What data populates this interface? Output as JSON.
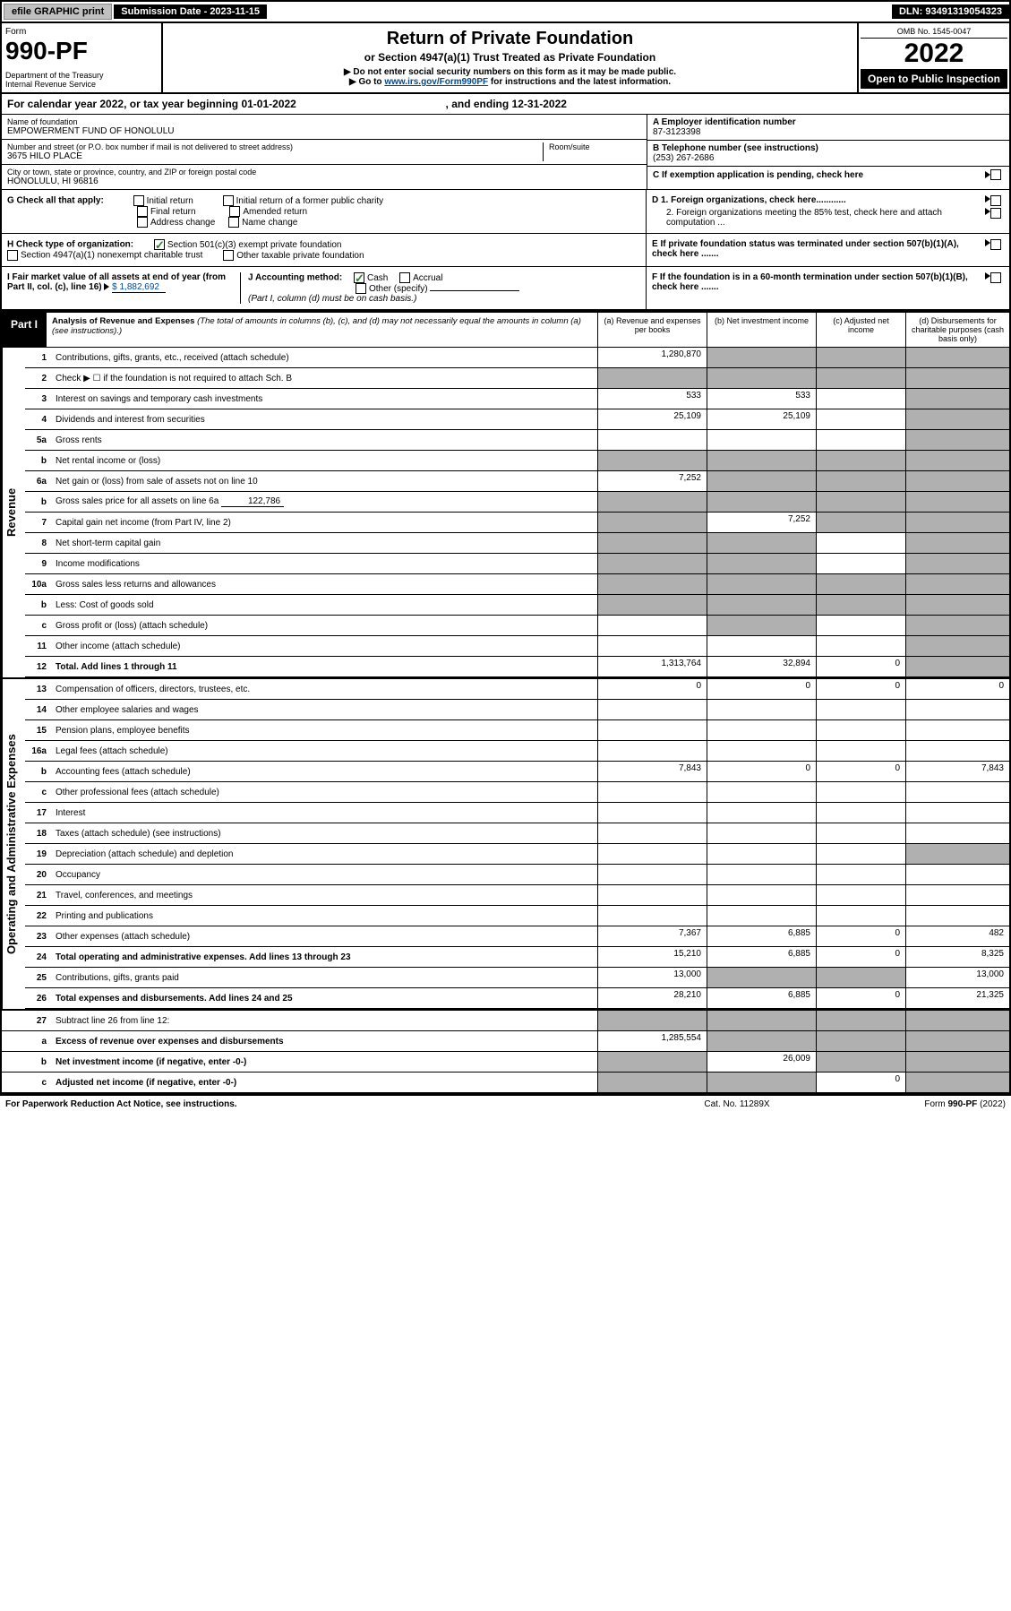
{
  "topbar": {
    "efile": "efile GRAPHIC print",
    "subdate": "Submission Date - 2023-11-15",
    "dln": "DLN: 93491319054323"
  },
  "header": {
    "form_label": "Form",
    "form_num": "990-PF",
    "dept": "Department of the Treasury\nInternal Revenue Service",
    "title": "Return of Private Foundation",
    "subtitle": "or Section 4947(a)(1) Trust Treated as Private Foundation",
    "line1": "▶ Do not enter social security numbers on this form as it may be made public.",
    "line2_pre": "▶ Go to ",
    "line2_link": "www.irs.gov/Form990PF",
    "line2_post": " for instructions and the latest information.",
    "omb": "OMB No. 1545-0047",
    "year": "2022",
    "open": "Open to Public Inspection"
  },
  "cal": {
    "text_pre": "For calendar year 2022, or tax year beginning ",
    "begin": "01-01-2022",
    "text_mid": " , and ending ",
    "end": "12-31-2022"
  },
  "info": {
    "name_label": "Name of foundation",
    "name": "EMPOWERMENT FUND OF HONOLULU",
    "addr_label": "Number and street (or P.O. box number if mail is not delivered to street address)",
    "addr": "3675 HILO PLACE",
    "room_label": "Room/suite",
    "city_label": "City or town, state or province, country, and ZIP or foreign postal code",
    "city": "HONOLULU, HI  96816",
    "A_label": "A Employer identification number",
    "A_val": "87-3123398",
    "B_label": "B Telephone number (see instructions)",
    "B_val": "(253) 267-2686",
    "C_label": "C If exemption application is pending, check here",
    "D1": "D 1. Foreign organizations, check here............",
    "D2": "2. Foreign organizations meeting the 85% test, check here and attach computation ...",
    "E": "E  If private foundation status was terminated under section 507(b)(1)(A), check here .......",
    "F": "F  If the foundation is in a 60-month termination under section 507(b)(1)(B), check here .......",
    "G_label": "G Check all that apply:",
    "G_opts": [
      "Initial return",
      "Initial return of a former public charity",
      "Final return",
      "Amended return",
      "Address change",
      "Name change"
    ],
    "H_label": "H Check type of organization:",
    "H_opt1": "Section 501(c)(3) exempt private foundation",
    "H_opt2": "Section 4947(a)(1) nonexempt charitable trust",
    "H_opt3": "Other taxable private foundation",
    "I_label": "I Fair market value of all assets at end of year (from Part II, col. (c), line 16)",
    "I_val": "$  1,882,692",
    "J_label": "J Accounting method:",
    "J_opts": [
      "Cash",
      "Accrual",
      "Other (specify)"
    ],
    "J_note": "(Part I, column (d) must be on cash basis.)"
  },
  "part1": {
    "label": "Part I",
    "title": "Analysis of Revenue and Expenses",
    "note": " (The total of amounts in columns (b), (c), and (d) may not necessarily equal the amounts in column (a) (see instructions).)",
    "col_a": "(a)   Revenue and expenses per books",
    "col_b": "(b)   Net investment income",
    "col_c": "(c)   Adjusted net income",
    "col_d": "(d)   Disbursements for charitable purposes (cash basis only)"
  },
  "sides": {
    "rev": "Revenue",
    "exp": "Operating and Administrative Expenses"
  },
  "rows": {
    "r1": {
      "n": "1",
      "d": "Contributions, gifts, grants, etc., received (attach schedule)",
      "a": "1,280,870",
      "b": "",
      "c": "",
      "dd": "",
      "bs": true,
      "cs": true,
      "ds": true
    },
    "r2": {
      "n": "2",
      "d": "Check ▶ ☐ if the foundation is not required to attach Sch. B",
      "a": "",
      "b": "",
      "c": "",
      "dd": "",
      "as": true,
      "bs": true,
      "cs": true,
      "ds": true
    },
    "r3": {
      "n": "3",
      "d": "Interest on savings and temporary cash investments",
      "a": "533",
      "b": "533",
      "c": "",
      "dd": "",
      "ds": true
    },
    "r4": {
      "n": "4",
      "d": "Dividends and interest from securities",
      "a": "25,109",
      "b": "25,109",
      "c": "",
      "dd": "",
      "ds": true
    },
    "r5a": {
      "n": "5a",
      "d": "Gross rents",
      "a": "",
      "b": "",
      "c": "",
      "dd": "",
      "ds": true
    },
    "r5b": {
      "n": "b",
      "d": "Net rental income or (loss)",
      "a": "",
      "b": "",
      "c": "",
      "dd": "",
      "as": true,
      "bs": true,
      "cs": true,
      "ds": true
    },
    "r6a": {
      "n": "6a",
      "d": "Net gain or (loss) from sale of assets not on line 10",
      "a": "7,252",
      "b": "",
      "c": "",
      "dd": "",
      "bs": true,
      "cs": true,
      "ds": true
    },
    "r6b": {
      "n": "b",
      "d": "Gross sales price for all assets on line 6a",
      "sub": "122,786",
      "a": "",
      "b": "",
      "c": "",
      "dd": "",
      "as": true,
      "bs": true,
      "cs": true,
      "ds": true
    },
    "r7": {
      "n": "7",
      "d": "Capital gain net income (from Part IV, line 2)",
      "a": "",
      "b": "7,252",
      "c": "",
      "dd": "",
      "as": true,
      "cs": true,
      "ds": true
    },
    "r8": {
      "n": "8",
      "d": "Net short-term capital gain",
      "a": "",
      "b": "",
      "c": "",
      "dd": "",
      "as": true,
      "bs": true,
      "ds": true
    },
    "r9": {
      "n": "9",
      "d": "Income modifications",
      "a": "",
      "b": "",
      "c": "",
      "dd": "",
      "as": true,
      "bs": true,
      "ds": true
    },
    "r10a": {
      "n": "10a",
      "d": "Gross sales less returns and allowances",
      "a": "",
      "b": "",
      "c": "",
      "dd": "",
      "as": true,
      "bs": true,
      "cs": true,
      "ds": true
    },
    "r10b": {
      "n": "b",
      "d": "Less: Cost of goods sold",
      "a": "",
      "b": "",
      "c": "",
      "dd": "",
      "as": true,
      "bs": true,
      "cs": true,
      "ds": true
    },
    "r10c": {
      "n": "c",
      "d": "Gross profit or (loss) (attach schedule)",
      "a": "",
      "b": "",
      "c": "",
      "dd": "",
      "bs": true,
      "ds": true
    },
    "r11": {
      "n": "11",
      "d": "Other income (attach schedule)",
      "a": "",
      "b": "",
      "c": "",
      "dd": "",
      "ds": true
    },
    "r12": {
      "n": "12",
      "d": "Total. Add lines 1 through 11",
      "a": "1,313,764",
      "b": "32,894",
      "c": "0",
      "dd": "",
      "ds": true,
      "bold": true
    },
    "r13": {
      "n": "13",
      "d": "Compensation of officers, directors, trustees, etc.",
      "a": "0",
      "b": "0",
      "c": "0",
      "dd": "0"
    },
    "r14": {
      "n": "14",
      "d": "Other employee salaries and wages",
      "a": "",
      "b": "",
      "c": "",
      "dd": ""
    },
    "r15": {
      "n": "15",
      "d": "Pension plans, employee benefits",
      "a": "",
      "b": "",
      "c": "",
      "dd": ""
    },
    "r16a": {
      "n": "16a",
      "d": "Legal fees (attach schedule)",
      "a": "",
      "b": "",
      "c": "",
      "dd": ""
    },
    "r16b": {
      "n": "b",
      "d": "Accounting fees (attach schedule)",
      "a": "7,843",
      "b": "0",
      "c": "0",
      "dd": "7,843"
    },
    "r16c": {
      "n": "c",
      "d": "Other professional fees (attach schedule)",
      "a": "",
      "b": "",
      "c": "",
      "dd": ""
    },
    "r17": {
      "n": "17",
      "d": "Interest",
      "a": "",
      "b": "",
      "c": "",
      "dd": ""
    },
    "r18": {
      "n": "18",
      "d": "Taxes (attach schedule) (see instructions)",
      "a": "",
      "b": "",
      "c": "",
      "dd": ""
    },
    "r19": {
      "n": "19",
      "d": "Depreciation (attach schedule) and depletion",
      "a": "",
      "b": "",
      "c": "",
      "dd": "",
      "ds": true
    },
    "r20": {
      "n": "20",
      "d": "Occupancy",
      "a": "",
      "b": "",
      "c": "",
      "dd": ""
    },
    "r21": {
      "n": "21",
      "d": "Travel, conferences, and meetings",
      "a": "",
      "b": "",
      "c": "",
      "dd": ""
    },
    "r22": {
      "n": "22",
      "d": "Printing and publications",
      "a": "",
      "b": "",
      "c": "",
      "dd": ""
    },
    "r23": {
      "n": "23",
      "d": "Other expenses (attach schedule)",
      "a": "7,367",
      "b": "6,885",
      "c": "0",
      "dd": "482"
    },
    "r24": {
      "n": "24",
      "d": "Total operating and administrative expenses. Add lines 13 through 23",
      "a": "15,210",
      "b": "6,885",
      "c": "0",
      "dd": "8,325",
      "bold": true
    },
    "r25": {
      "n": "25",
      "d": "Contributions, gifts, grants paid",
      "a": "13,000",
      "b": "",
      "c": "",
      "dd": "13,000",
      "bs": true,
      "cs": true
    },
    "r26": {
      "n": "26",
      "d": "Total expenses and disbursements. Add lines 24 and 25",
      "a": "28,210",
      "b": "6,885",
      "c": "0",
      "dd": "21,325",
      "bold": true
    },
    "r27": {
      "n": "27",
      "d": "Subtract line 26 from line 12:",
      "a": "",
      "b": "",
      "c": "",
      "dd": "",
      "as": true,
      "bs": true,
      "cs": true,
      "ds": true
    },
    "r27a": {
      "n": "a",
      "d": "Excess of revenue over expenses and disbursements",
      "a": "1,285,554",
      "b": "",
      "c": "",
      "dd": "",
      "bs": true,
      "cs": true,
      "ds": true,
      "bold": true
    },
    "r27b": {
      "n": "b",
      "d": "Net investment income (if negative, enter -0-)",
      "a": "",
      "b": "26,009",
      "c": "",
      "dd": "",
      "as": true,
      "cs": true,
      "ds": true,
      "bold": true
    },
    "r27c": {
      "n": "c",
      "d": "Adjusted net income (if negative, enter -0-)",
      "a": "",
      "b": "",
      "c": "0",
      "dd": "",
      "as": true,
      "bs": true,
      "ds": true,
      "bold": true
    }
  },
  "footer": {
    "l": "For Paperwork Reduction Act Notice, see instructions.",
    "m": "Cat. No. 11289X",
    "r": "Form 990-PF (2022)"
  },
  "colors": {
    "link": "#004b8d",
    "shade": "#b0b0b0",
    "check": "#2e7d32"
  }
}
